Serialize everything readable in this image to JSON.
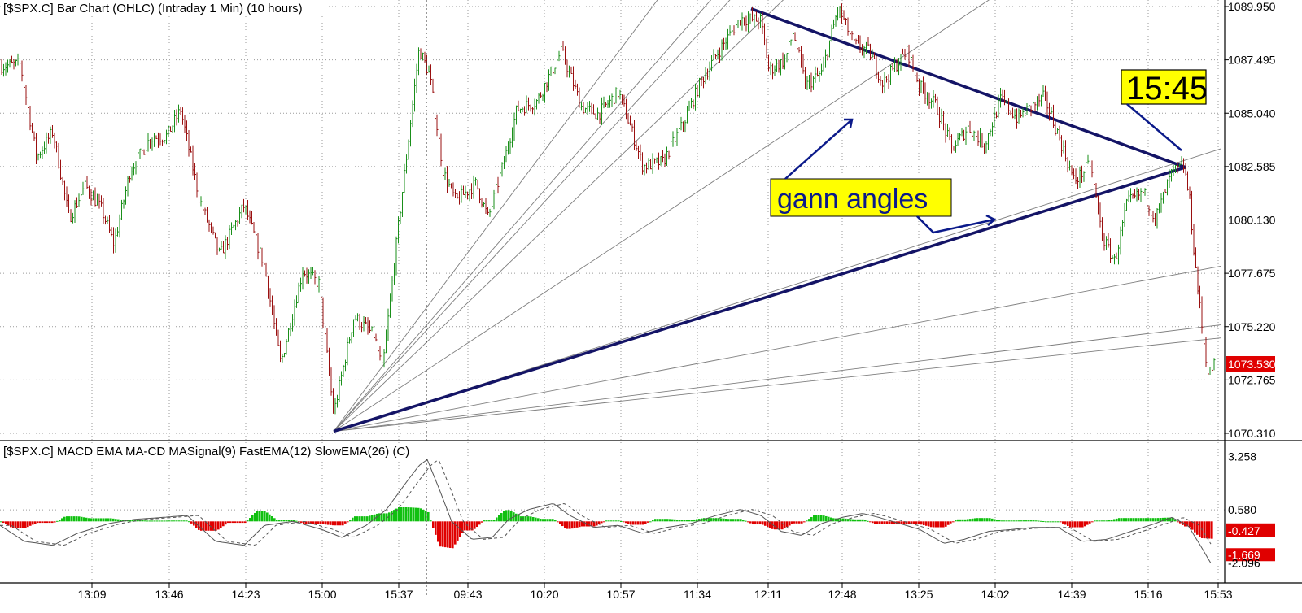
{
  "chart_data": [
    {
      "type": "ohlc",
      "title": "[$SPX.C] Bar Chart (OHLC) (Intraday 1 Min) (10 hours)",
      "y_ticks": [
        "1089.950",
        "1087.495",
        "1085.040",
        "1082.585",
        "1080.130",
        "1077.675",
        "1075.220",
        "1072.765",
        "1070.310"
      ],
      "ylim": [
        1070.31,
        1089.95
      ],
      "x_ticks": [
        "13:09",
        "13:46",
        "14:23",
        "15:00",
        "15:37",
        "09:43",
        "10:20",
        "10:57",
        "11:34",
        "12:11",
        "12:48",
        "13:25",
        "14:02",
        "14:39",
        "15:16",
        "15:53"
      ],
      "last_price": "1073.530",
      "grid": true,
      "up_color": "#1a8f1a",
      "down_color": "#9a1010",
      "price_path": [
        [
          0,
          1087.2
        ],
        [
          25,
          1087.3
        ],
        [
          45,
          1083.0
        ],
        [
          65,
          1084.2
        ],
        [
          85,
          1080.2
        ],
        [
          105,
          1081.7
        ],
        [
          125,
          1080.6
        ],
        [
          140,
          1079.0
        ],
        [
          160,
          1082.4
        ],
        [
          185,
          1083.9
        ],
        [
          205,
          1084.0
        ],
        [
          222,
          1085.2
        ],
        [
          245,
          1081.1
        ],
        [
          270,
          1078.5
        ],
        [
          300,
          1080.8
        ],
        [
          325,
          1078.0
        ],
        [
          345,
          1073.5
        ],
        [
          372,
          1077.8
        ],
        [
          392,
          1077.2
        ],
        [
          410,
          1071.2
        ],
        [
          435,
          1075.7
        ],
        [
          460,
          1074.8
        ],
        [
          470,
          1073.2
        ],
        [
          490,
          1080.0
        ],
        [
          515,
          1088.0
        ],
        [
          528,
          1086.8
        ],
        [
          545,
          1082.3
        ],
        [
          560,
          1081.0
        ],
        [
          585,
          1081.8
        ],
        [
          600,
          1080.2
        ],
        [
          620,
          1082.9
        ],
        [
          635,
          1085.2
        ],
        [
          660,
          1085.6
        ],
        [
          690,
          1087.9
        ],
        [
          715,
          1085.3
        ],
        [
          735,
          1085.0
        ],
        [
          760,
          1086.0
        ],
        [
          775,
          1084.4
        ],
        [
          790,
          1082.6
        ],
        [
          815,
          1082.8
        ],
        [
          840,
          1084.6
        ],
        [
          860,
          1086.4
        ],
        [
          880,
          1087.7
        ],
        [
          910,
          1089.4
        ],
        [
          935,
          1089.3
        ],
        [
          945,
          1087.0
        ],
        [
          965,
          1087.5
        ],
        [
          975,
          1088.8
        ],
        [
          990,
          1086.3
        ],
        [
          1010,
          1086.9
        ],
        [
          1030,
          1089.9
        ],
        [
          1050,
          1088.2
        ],
        [
          1068,
          1087.9
        ],
        [
          1085,
          1086.4
        ],
        [
          1100,
          1087.2
        ],
        [
          1115,
          1087.9
        ],
        [
          1130,
          1086.3
        ],
        [
          1150,
          1085.4
        ],
        [
          1170,
          1083.4
        ],
        [
          1190,
          1084.4
        ],
        [
          1210,
          1083.6
        ],
        [
          1230,
          1085.7
        ],
        [
          1250,
          1084.8
        ],
        [
          1270,
          1085.4
        ],
        [
          1283,
          1085.8
        ],
        [
          1300,
          1084.1
        ],
        [
          1320,
          1081.9
        ],
        [
          1340,
          1082.7
        ],
        [
          1355,
          1079.3
        ],
        [
          1370,
          1078.2
        ],
        [
          1385,
          1080.9
        ],
        [
          1405,
          1081.4
        ],
        [
          1420,
          1080.2
        ],
        [
          1440,
          1082.3
        ],
        [
          1455,
          1082.6
        ],
        [
          1462,
          1081.0
        ],
        [
          1468,
          1078.4
        ],
        [
          1473,
          1076.6
        ],
        [
          1478,
          1074.9
        ],
        [
          1485,
          1073.0
        ],
        [
          1492,
          1073.5
        ]
      ],
      "gann_angles": {
        "origin": [
          410,
          1070.4
        ],
        "thin_targets": [
          [
            835,
            1091.6
          ],
          [
            905,
            1091.6
          ],
          [
            930,
            1091.6
          ],
          [
            1000,
            1091.6
          ],
          [
            1270,
            1091.6
          ],
          [
            1500,
            1083.4
          ],
          [
            1500,
            1078.0
          ],
          [
            1500,
            1075.3
          ],
          [
            1500,
            1074.7
          ]
        ],
        "bold_rising_end": [
          1457,
          1082.55
        ],
        "bold_falling": [
          [
            923,
            1089.85
          ],
          [
            1457,
            1082.55
          ]
        ]
      }
    },
    {
      "type": "macd",
      "title": "[$SPX.C] MACD EMA MA-CD MASignal(9) FastEMA(12) SlowEMA(26) (C)",
      "y_ticks": [
        "3.258",
        "0.580",
        "-1.669",
        "-2.096"
      ],
      "ylim": [
        -2.8,
        3.6
      ],
      "value_tags": [
        "-0.427"
      ],
      "histogram_color_positive": "#10c010",
      "histogram_color_negative": "#e00000",
      "macd_path": [
        [
          0,
          -0.2
        ],
        [
          30,
          -1.0
        ],
        [
          65,
          -1.2
        ],
        [
          95,
          -0.6
        ],
        [
          135,
          -0.1
        ],
        [
          165,
          0.1
        ],
        [
          200,
          0.2
        ],
        [
          230,
          0.3
        ],
        [
          265,
          -1.0
        ],
        [
          300,
          -1.2
        ],
        [
          325,
          -0.2
        ],
        [
          360,
          0.0
        ],
        [
          395,
          -0.4
        ],
        [
          420,
          -0.8
        ],
        [
          450,
          -0.2
        ],
        [
          475,
          0.6
        ],
        [
          500,
          2.0
        ],
        [
          515,
          2.8
        ],
        [
          525,
          3.1
        ],
        [
          540,
          1.6
        ],
        [
          555,
          0.0
        ],
        [
          580,
          -0.9
        ],
        [
          605,
          -0.8
        ],
        [
          625,
          0.1
        ],
        [
          650,
          0.6
        ],
        [
          680,
          0.9
        ],
        [
          700,
          0.3
        ],
        [
          730,
          -0.3
        ],
        [
          760,
          -0.2
        ],
        [
          790,
          -0.6
        ],
        [
          820,
          -0.3
        ],
        [
          850,
          -0.1
        ],
        [
          880,
          0.3
        ],
        [
          910,
          0.6
        ],
        [
          935,
          0.3
        ],
        [
          960,
          -0.5
        ],
        [
          985,
          -0.7
        ],
        [
          1010,
          -0.1
        ],
        [
          1035,
          0.2
        ],
        [
          1060,
          0.4
        ],
        [
          1080,
          0.2
        ],
        [
          1105,
          -0.1
        ],
        [
          1130,
          -0.4
        ],
        [
          1160,
          -1.1
        ],
        [
          1185,
          -0.9
        ],
        [
          1215,
          -0.5
        ],
        [
          1245,
          -0.4
        ],
        [
          1270,
          -0.3
        ],
        [
          1300,
          -0.3
        ],
        [
          1330,
          -1.0
        ],
        [
          1360,
          -0.9
        ],
        [
          1390,
          -0.5
        ],
        [
          1420,
          -0.1
        ],
        [
          1440,
          0.2
        ],
        [
          1460,
          -0.2
        ],
        [
          1475,
          -1.2
        ],
        [
          1488,
          -2.1
        ]
      ],
      "signal_lag": 14
    }
  ]
}
